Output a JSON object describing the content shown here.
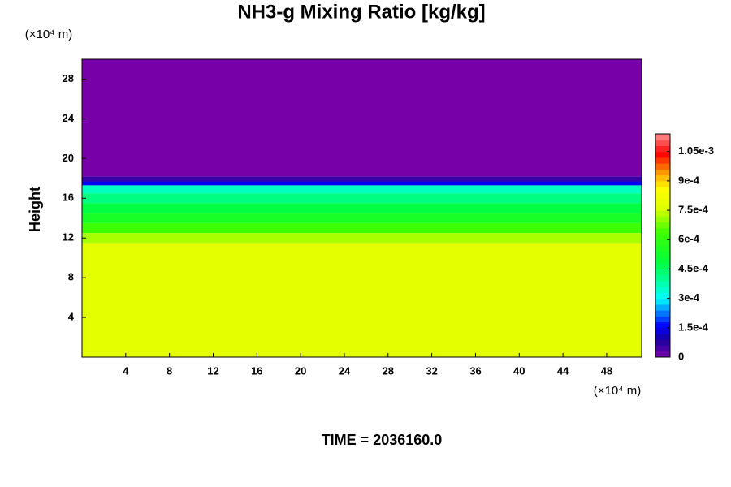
{
  "chart_data": {
    "type": "contour",
    "title": "NH3-g Mixing Ratio [kg/kg]",
    "ylabel": "Height",
    "x_unit": "(×10⁴ m)",
    "y_unit": "(×10⁴ m)",
    "annotation": "TIME = 2036160.0",
    "xlim": [
      0,
      51.2
    ],
    "xticks": [
      4,
      8,
      12,
      16,
      20,
      24,
      28,
      32,
      36,
      40,
      44,
      48
    ],
    "ylim": [
      0,
      30
    ],
    "yticks": [
      4,
      8,
      12,
      16,
      20,
      24,
      28
    ],
    "y_edges": [
      0,
      11.5,
      12.5,
      13.5,
      14.5,
      15.5,
      16.5,
      17.3,
      17.7,
      18.2,
      30
    ],
    "values": [
      0.00078,
      0.00072,
      0.00063,
      0.00054,
      0.00048,
      0.00042,
      0.00036,
      0.00015,
      6e-05,
      0
    ],
    "clim": [
      0,
      0.00114
    ],
    "cticks": [
      0,
      {
        "value": 0.00015,
        "label": "1.5e-4"
      },
      {
        "value": 0.0003,
        "label": "3e-4"
      },
      {
        "value": 0.00045,
        "label": "4.5e-4"
      },
      {
        "value": 0.0006,
        "label": "6e-4"
      },
      {
        "value": 0.00075,
        "label": "7.5e-4"
      },
      {
        "value": 0.0009,
        "label": "9e-4"
      },
      {
        "value": 0.00105,
        "label": "1.05e-3"
      }
    ],
    "colormap": [
      {
        "value": 0,
        "color": "#7800a8"
      },
      {
        "value": 9e-05,
        "color": "#1a00a0"
      },
      {
        "value": 0.00016,
        "color": "#0000ff"
      },
      {
        "value": 0.0003,
        "color": "#00ffff"
      },
      {
        "value": 0.00048,
        "color": "#00ff40"
      },
      {
        "value": 0.00064,
        "color": "#40ff00"
      },
      {
        "value": 0.00076,
        "color": "#dcff00"
      },
      {
        "value": 0.00086,
        "color": "#ffff00"
      },
      {
        "value": 0.00094,
        "color": "#ffa000"
      },
      {
        "value": 0.00104,
        "color": "#ff0000"
      },
      {
        "value": 0.00114,
        "color": "#ff9090"
      }
    ]
  }
}
